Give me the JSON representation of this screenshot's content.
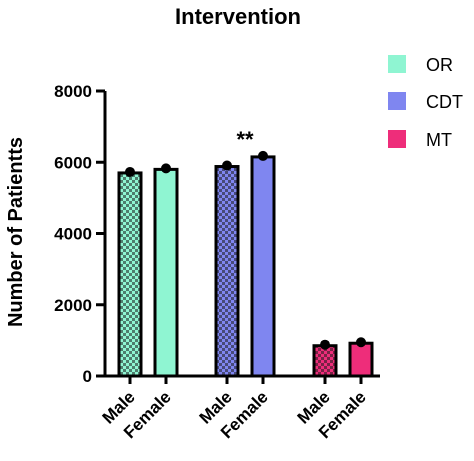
{
  "chart_data": {
    "type": "bar",
    "title": "Intervention",
    "ylabel": "Number of Patientts",
    "xlabel": "",
    "ylim": [
      0,
      8000
    ],
    "yticks": [
      0,
      2000,
      4000,
      6000,
      8000
    ],
    "legend_position": "top-right",
    "grid": false,
    "groups": [
      {
        "name": "OR",
        "color": "#8ff5d2",
        "pattern": "checker",
        "categories": [
          "Male",
          "Female"
        ],
        "values": [
          5700,
          5800
        ]
      },
      {
        "name": "CDT",
        "color": "#7f86f0",
        "pattern": "checker",
        "categories": [
          "Male",
          "Female"
        ],
        "values": [
          5880,
          6150
        ]
      },
      {
        "name": "MT",
        "color": "#ee2d7a",
        "pattern": "checker",
        "categories": [
          "Male",
          "Female"
        ],
        "values": [
          850,
          920
        ]
      }
    ],
    "annotations": [
      {
        "text": "**",
        "group": 1
      }
    ]
  }
}
